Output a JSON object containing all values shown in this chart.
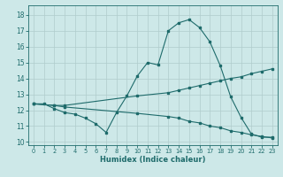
{
  "xlabel": "Humidex (Indice chaleur)",
  "xlim": [
    -0.5,
    23.5
  ],
  "ylim": [
    9.8,
    18.6
  ],
  "yticks": [
    10,
    11,
    12,
    13,
    14,
    15,
    16,
    17,
    18
  ],
  "xticks": [
    0,
    1,
    2,
    3,
    4,
    5,
    6,
    7,
    8,
    9,
    10,
    11,
    12,
    13,
    14,
    15,
    16,
    17,
    18,
    19,
    20,
    21,
    22,
    23
  ],
  "bg_color": "#cde8e8",
  "line_color": "#1e6b6b",
  "grid_color": "#b0cccc",
  "lines": [
    {
      "x": [
        0,
        1,
        2,
        3,
        4,
        5,
        6,
        7,
        8,
        9,
        10,
        11,
        12,
        13,
        14,
        15,
        16,
        17,
        18,
        19,
        20,
        21,
        22,
        23
      ],
      "y": [
        12.4,
        12.4,
        12.1,
        11.85,
        11.75,
        11.5,
        11.15,
        10.6,
        11.85,
        12.9,
        14.15,
        15.0,
        14.85,
        17.0,
        17.5,
        17.7,
        17.2,
        16.3,
        14.8,
        12.85,
        11.55,
        10.5,
        10.3,
        10.3
      ]
    },
    {
      "x": [
        0,
        2,
        3,
        10,
        13,
        14,
        15,
        16,
        17,
        18,
        19,
        20,
        21,
        22,
        23
      ],
      "y": [
        12.4,
        12.3,
        12.3,
        12.9,
        13.1,
        13.25,
        13.4,
        13.55,
        13.7,
        13.85,
        14.0,
        14.1,
        14.3,
        14.45,
        14.6
      ]
    },
    {
      "x": [
        0,
        2,
        3,
        10,
        13,
        14,
        15,
        16,
        17,
        18,
        19,
        20,
        21,
        22,
        23
      ],
      "y": [
        12.4,
        12.3,
        12.2,
        11.8,
        11.6,
        11.5,
        11.3,
        11.2,
        11.0,
        10.9,
        10.7,
        10.6,
        10.45,
        10.35,
        10.25
      ]
    }
  ]
}
